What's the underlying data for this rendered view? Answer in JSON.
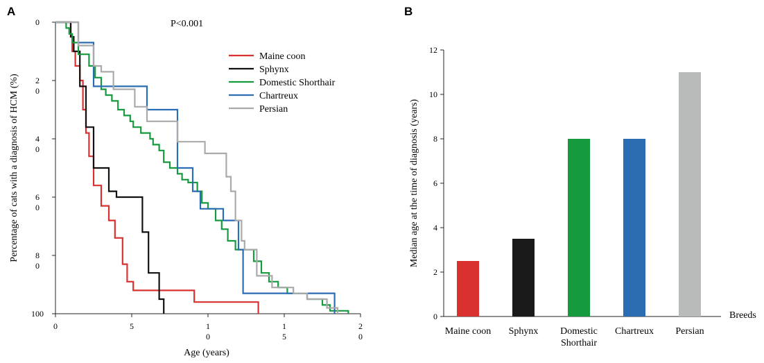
{
  "chart_data": [
    {
      "type": "line",
      "panel": "A",
      "annotation": "P<0.001",
      "xlabel": "Age (years)",
      "ylabel": "Percentage of cats with a diagnosis of HCM (%)",
      "xlim": [
        0,
        20
      ],
      "ylim": [
        0,
        100
      ],
      "y_inverted": true,
      "xticks": [
        "0",
        "5",
        "1\n0",
        "1\n5",
        "2\n0"
      ],
      "yticks": [
        "0",
        "2\n0",
        "4\n0",
        "6\n0",
        "8\n0",
        "100"
      ],
      "legend_position": "top-right",
      "series": [
        {
          "name": "Maine coon",
          "color": "#d93030",
          "points": [
            [
              0,
              0
            ],
            [
              1,
              0
            ],
            [
              1,
              5
            ],
            [
              1.1,
              5
            ],
            [
              1.1,
              10
            ],
            [
              1.3,
              10
            ],
            [
              1.3,
              15
            ],
            [
              1.6,
              15
            ],
            [
              1.6,
              20
            ],
            [
              1.8,
              20
            ],
            [
              1.8,
              30
            ],
            [
              2,
              30
            ],
            [
              2,
              38
            ],
            [
              2.2,
              38
            ],
            [
              2.2,
              46
            ],
            [
              2.5,
              46
            ],
            [
              2.5,
              56
            ],
            [
              3,
              56
            ],
            [
              3,
              63
            ],
            [
              3.5,
              63
            ],
            [
              3.5,
              68
            ],
            [
              3.9,
              68
            ],
            [
              3.9,
              74
            ],
            [
              4.4,
              74
            ],
            [
              4.4,
              83
            ],
            [
              4.7,
              83
            ],
            [
              4.7,
              89
            ],
            [
              5.1,
              89
            ],
            [
              5.1,
              92
            ],
            [
              9.1,
              92
            ],
            [
              9.1,
              96
            ],
            [
              13.3,
              96
            ],
            [
              13.3,
              100
            ]
          ]
        },
        {
          "name": "Sphynx",
          "color": "#111111",
          "points": [
            [
              0,
              0
            ],
            [
              1,
              0
            ],
            [
              1,
              5
            ],
            [
              1.2,
              5
            ],
            [
              1.2,
              10
            ],
            [
              1.6,
              10
            ],
            [
              1.6,
              22
            ],
            [
              2,
              22
            ],
            [
              2,
              36
            ],
            [
              2.5,
              36
            ],
            [
              2.5,
              50
            ],
            [
              3.5,
              50
            ],
            [
              3.5,
              58
            ],
            [
              4,
              58
            ],
            [
              4,
              60
            ],
            [
              5.7,
              60
            ],
            [
              5.7,
              72
            ],
            [
              6.1,
              72
            ],
            [
              6.1,
              86
            ],
            [
              6.8,
              86
            ],
            [
              6.8,
              95
            ],
            [
              7.1,
              95
            ],
            [
              7.1,
              100
            ]
          ]
        },
        {
          "name": "Domestic Shorthair",
          "color": "#159a3e",
          "points": [
            [
              0,
              0
            ],
            [
              0.7,
              0
            ],
            [
              0.7,
              2
            ],
            [
              0.9,
              2
            ],
            [
              0.9,
              4
            ],
            [
              1.1,
              4
            ],
            [
              1.1,
              7
            ],
            [
              1.5,
              7
            ],
            [
              1.5,
              11
            ],
            [
              2.2,
              11
            ],
            [
              2.2,
              15
            ],
            [
              2.6,
              15
            ],
            [
              2.6,
              19
            ],
            [
              3,
              19
            ],
            [
              3,
              23
            ],
            [
              3.3,
              23
            ],
            [
              3.3,
              25
            ],
            [
              3.7,
              25
            ],
            [
              3.7,
              27
            ],
            [
              4.1,
              27
            ],
            [
              4.1,
              30
            ],
            [
              4.5,
              30
            ],
            [
              4.5,
              32
            ],
            [
              4.9,
              32
            ],
            [
              4.9,
              34
            ],
            [
              5.1,
              34
            ],
            [
              5.1,
              36
            ],
            [
              5.6,
              36
            ],
            [
              5.6,
              38
            ],
            [
              6.2,
              38
            ],
            [
              6.2,
              40
            ],
            [
              6.4,
              40
            ],
            [
              6.4,
              42
            ],
            [
              6.8,
              42
            ],
            [
              6.8,
              44
            ],
            [
              7.1,
              44
            ],
            [
              7.1,
              48
            ],
            [
              7.5,
              48
            ],
            [
              7.5,
              50
            ],
            [
              8,
              50
            ],
            [
              8,
              52
            ],
            [
              8.3,
              52
            ],
            [
              8.3,
              54
            ],
            [
              8.7,
              54
            ],
            [
              8.7,
              55
            ],
            [
              9.3,
              55
            ],
            [
              9.3,
              58
            ],
            [
              9.6,
              58
            ],
            [
              9.6,
              62
            ],
            [
              10,
              62
            ],
            [
              10,
              64
            ],
            [
              10.5,
              64
            ],
            [
              10.5,
              68
            ],
            [
              10.9,
              68
            ],
            [
              10.9,
              71
            ],
            [
              11.3,
              71
            ],
            [
              11.3,
              75
            ],
            [
              11.8,
              75
            ],
            [
              11.8,
              78
            ],
            [
              13,
              78
            ],
            [
              13,
              82
            ],
            [
              13.5,
              82
            ],
            [
              13.5,
              86
            ],
            [
              14,
              86
            ],
            [
              14,
              89
            ],
            [
              14.6,
              89
            ],
            [
              14.6,
              91
            ],
            [
              15.2,
              91
            ],
            [
              15.2,
              93
            ],
            [
              16.5,
              93
            ],
            [
              16.5,
              95
            ],
            [
              17.5,
              95
            ],
            [
              17.5,
              97
            ],
            [
              18,
              97
            ],
            [
              18,
              99
            ],
            [
              19.2,
              99
            ],
            [
              19.2,
              100
            ]
          ]
        },
        {
          "name": "Chartreux",
          "color": "#2b6db3",
          "points": [
            [
              0,
              0
            ],
            [
              1.5,
              0
            ],
            [
              1.5,
              7
            ],
            [
              2.5,
              7
            ],
            [
              2.5,
              22
            ],
            [
              6,
              22
            ],
            [
              6,
              30
            ],
            [
              8,
              30
            ],
            [
              8,
              50
            ],
            [
              9,
              50
            ],
            [
              9,
              58
            ],
            [
              9.5,
              58
            ],
            [
              9.5,
              64
            ],
            [
              11,
              64
            ],
            [
              11,
              68
            ],
            [
              12,
              68
            ],
            [
              12,
              78
            ],
            [
              12.3,
              78
            ],
            [
              12.3,
              93
            ],
            [
              18.3,
              93
            ],
            [
              18.3,
              100
            ]
          ]
        },
        {
          "name": "Persian",
          "color": "#aaaaaa",
          "points": [
            [
              0,
              0
            ],
            [
              1.5,
              0
            ],
            [
              1.5,
              8
            ],
            [
              2.5,
              8
            ],
            [
              2.5,
              15
            ],
            [
              3,
              15
            ],
            [
              3,
              17
            ],
            [
              3.8,
              17
            ],
            [
              3.8,
              23
            ],
            [
              5.2,
              23
            ],
            [
              5.2,
              29
            ],
            [
              6,
              29
            ],
            [
              6,
              34
            ],
            [
              8,
              34
            ],
            [
              8,
              41
            ],
            [
              9.8,
              41
            ],
            [
              9.8,
              45
            ],
            [
              11.2,
              45
            ],
            [
              11.2,
              53
            ],
            [
              11.5,
              53
            ],
            [
              11.5,
              58
            ],
            [
              11.8,
              58
            ],
            [
              11.8,
              68
            ],
            [
              12.2,
              68
            ],
            [
              12.2,
              75
            ],
            [
              12.4,
              75
            ],
            [
              12.4,
              78
            ],
            [
              13.2,
              78
            ],
            [
              13.2,
              87
            ],
            [
              14.2,
              87
            ],
            [
              14.2,
              91
            ],
            [
              15.6,
              91
            ],
            [
              15.6,
              93
            ],
            [
              16.5,
              93
            ],
            [
              16.5,
              95
            ],
            [
              17.8,
              95
            ],
            [
              17.8,
              98
            ],
            [
              18.5,
              98
            ],
            [
              18.5,
              100
            ]
          ]
        }
      ]
    },
    {
      "type": "bar",
      "panel": "B",
      "categories": [
        "Maine coon",
        "Sphynx",
        "Domestic\nShorthair",
        "Chartreux",
        "Persian"
      ],
      "values": [
        2.5,
        3.5,
        8,
        8,
        11
      ],
      "colors": [
        "#d93030",
        "#1a1a1a",
        "#159a3e",
        "#2b6db3",
        "#b9bbba"
      ],
      "xlabel": "Breeds",
      "ylabel": "Median age at the time of diagnosis (years)",
      "ylim": [
        0,
        12
      ],
      "yticks": [
        "0",
        "2",
        "4",
        "6",
        "8",
        "10",
        "12"
      ]
    }
  ]
}
